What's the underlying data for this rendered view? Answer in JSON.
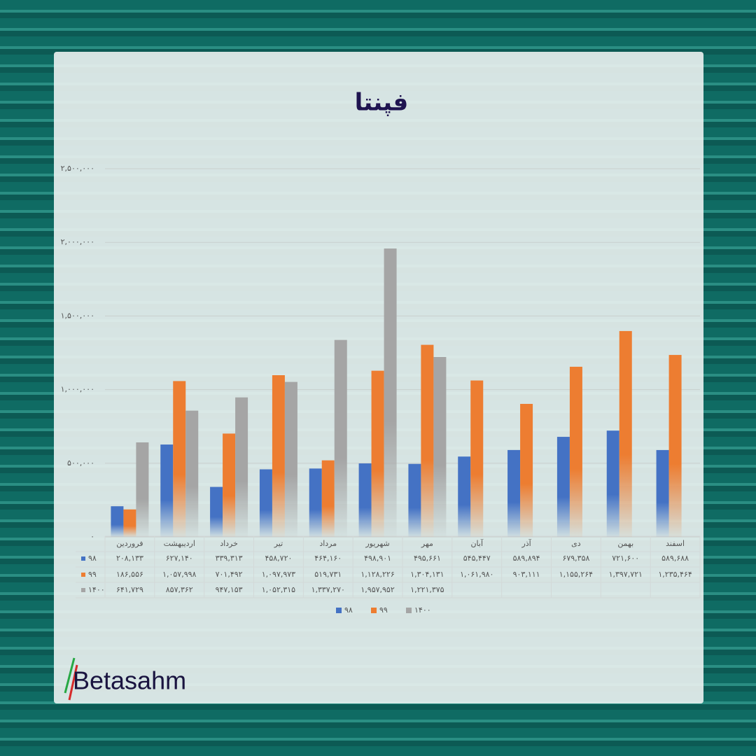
{
  "chart_data": {
    "type": "bar",
    "title": "فپنتا",
    "categories": [
      "فروردین",
      "اردیبهشت",
      "خرداد",
      "تیر",
      "مرداد",
      "شهریور",
      "مهر",
      "آبان",
      "آذر",
      "دی",
      "بهمن",
      "اسفند"
    ],
    "series": [
      {
        "name": "۹۸",
        "color": "#4472c4",
        "values": [
          208133,
          627140,
          339313,
          458720,
          464160,
          498901,
          495661,
          545447,
          589894,
          679358,
          721600,
          589688
        ],
        "value_labels": [
          "۲۰۸,۱۳۳",
          "۶۲۷,۱۴۰",
          "۳۳۹,۳۱۳",
          "۴۵۸,۷۲۰",
          "۴۶۴,۱۶۰",
          "۴۹۸,۹۰۱",
          "۴۹۵,۶۶۱",
          "۵۴۵,۴۴۷",
          "۵۸۹,۸۹۴",
          "۶۷۹,۳۵۸",
          "۷۲۱,۶۰۰",
          "۵۸۹,۶۸۸"
        ]
      },
      {
        "name": "۹۹",
        "color": "#ed7d31",
        "values": [
          186556,
          1057998,
          701492,
          1097973,
          519731,
          1128226,
          1304131,
          1061980,
          903111,
          1155264,
          1397721,
          1235464
        ],
        "value_labels": [
          "۱۸۶,۵۵۶",
          "۱,۰۵۷,۹۹۸",
          "۷۰۱,۴۹۲",
          "۱,۰۹۷,۹۷۳",
          "۵۱۹,۷۳۱",
          "۱,۱۲۸,۲۲۶",
          "۱,۳۰۴,۱۳۱",
          "۱,۰۶۱,۹۸۰",
          "۹۰۳,۱۱۱",
          "۱,۱۵۵,۲۶۴",
          "۱,۳۹۷,۷۲۱",
          "۱,۲۳۵,۴۶۴"
        ]
      },
      {
        "name": "۱۴۰۰",
        "color": "#a5a5a5",
        "values": [
          641729,
          857362,
          947153,
          1052315,
          1337270,
          1957952,
          1221375,
          null,
          null,
          null,
          null,
          null
        ],
        "value_labels": [
          "۶۴۱,۷۲۹",
          "۸۵۷,۳۶۲",
          "۹۴۷,۱۵۳",
          "۱,۰۵۲,۳۱۵",
          "۱,۳۳۷,۲۷۰",
          "۱,۹۵۷,۹۵۲",
          "۱,۲۲۱,۳۷۵",
          null,
          null,
          null,
          null,
          null
        ]
      }
    ],
    "ylim": [
      0,
      2500000
    ],
    "yticks": [
      {
        "value": 0,
        "label": "۰"
      },
      {
        "value": 500000,
        "label": "۵۰۰,۰۰۰"
      },
      {
        "value": 1000000,
        "label": "۱,۰۰۰,۰۰۰"
      },
      {
        "value": 1500000,
        "label": "۱,۵۰۰,۰۰۰"
      },
      {
        "value": 2000000,
        "label": "۲,۰۰۰,۰۰۰"
      },
      {
        "value": 2500000,
        "label": "۲,۵۰۰,۰۰۰"
      }
    ],
    "grid": true,
    "legend": "bottom"
  },
  "brand": "Betasahm"
}
